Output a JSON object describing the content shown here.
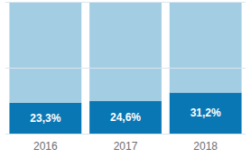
{
  "chart_data": {
    "type": "bar",
    "stacked": true,
    "categories": [
      "2016",
      "2017",
      "2018"
    ],
    "series": [
      {
        "color": "#0a77b5",
        "values": [
          23.3,
          24.6,
          31.2
        ],
        "data_labels": true,
        "value_labels": [
          "23,3%",
          "24,6%",
          "31,2%"
        ]
      },
      {
        "color": "#a3cde3",
        "values": [
          76.7,
          75.4,
          68.8
        ],
        "data_labels": false
      }
    ],
    "ylim": [
      0,
      100
    ],
    "yticks": [
      0,
      50,
      100
    ],
    "grid": true,
    "tick_labels": "x"
  }
}
